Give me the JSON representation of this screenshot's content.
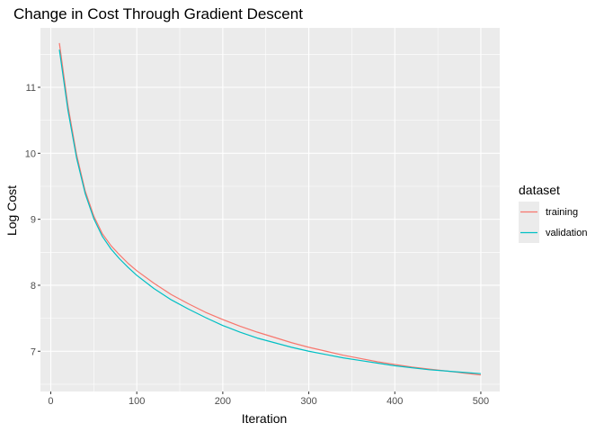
{
  "chart_data": {
    "type": "line",
    "title": "Change in Cost Through Gradient Descent",
    "xlabel": "Iteration",
    "ylabel": "Log Cost",
    "xlim": [
      -12,
      522
    ],
    "ylim": [
      6.39,
      11.9
    ],
    "x_ticks": [
      0,
      100,
      200,
      300,
      400,
      500
    ],
    "y_ticks": [
      7,
      8,
      9,
      10,
      11
    ],
    "grid": true,
    "legend": {
      "title": "dataset",
      "position": "right"
    },
    "series": [
      {
        "name": "training",
        "color": "#F8766D",
        "x": [
          10,
          20,
          30,
          40,
          50,
          60,
          70,
          80,
          90,
          100,
          120,
          140,
          160,
          180,
          200,
          220,
          240,
          260,
          280,
          300,
          320,
          340,
          360,
          380,
          400,
          420,
          440,
          460,
          480,
          500
        ],
        "values": [
          11.67,
          10.72,
          9.98,
          9.43,
          9.05,
          8.78,
          8.6,
          8.46,
          8.33,
          8.22,
          8.03,
          7.86,
          7.72,
          7.59,
          7.48,
          7.38,
          7.29,
          7.21,
          7.13,
          7.06,
          7.0,
          6.94,
          6.89,
          6.84,
          6.8,
          6.76,
          6.73,
          6.7,
          6.67,
          6.64
        ]
      },
      {
        "name": "validation",
        "color": "#00BFC4",
        "x": [
          10,
          20,
          30,
          40,
          50,
          60,
          70,
          80,
          90,
          100,
          120,
          140,
          160,
          180,
          200,
          220,
          240,
          260,
          280,
          300,
          320,
          340,
          360,
          380,
          400,
          420,
          440,
          460,
          480,
          500
        ],
        "values": [
          11.57,
          10.65,
          9.93,
          9.39,
          9.01,
          8.74,
          8.55,
          8.4,
          8.27,
          8.15,
          7.95,
          7.78,
          7.64,
          7.51,
          7.39,
          7.29,
          7.2,
          7.13,
          7.06,
          7.0,
          6.95,
          6.9,
          6.86,
          6.82,
          6.78,
          6.75,
          6.72,
          6.7,
          6.68,
          6.66
        ]
      }
    ]
  }
}
